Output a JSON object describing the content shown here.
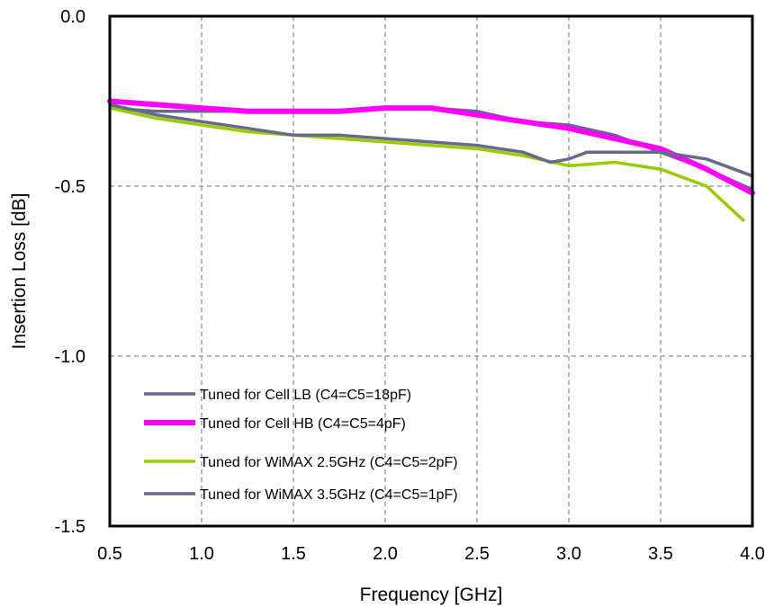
{
  "chart_data": {
    "type": "line",
    "title": "",
    "xlabel": "Frequency [GHz]",
    "ylabel": "Insertion Loss [dB]",
    "xlim": [
      0.5,
      4.0
    ],
    "ylim": [
      -1.5,
      0.0
    ],
    "x_ticks": [
      "0.5",
      "1.0",
      "1.5",
      "2.0",
      "2.5",
      "3.0",
      "3.5",
      "4.0"
    ],
    "y_ticks": [
      "0.0",
      "-0.5",
      "-1.0",
      "-1.5"
    ],
    "grid": true,
    "legend_position": "bottom-left",
    "series": [
      {
        "name": "Tuned for Cell LB (C4=C5=18pF)",
        "color": "#666a8a",
        "x": [
          0.5,
          0.75,
          1.0,
          1.25,
          1.5,
          1.75,
          2.0,
          2.25,
          2.5,
          2.75,
          3.0,
          3.25,
          3.5,
          3.75,
          4.0
        ],
        "y": [
          -0.27,
          -0.28,
          -0.28,
          -0.28,
          -0.28,
          -0.28,
          -0.27,
          -0.27,
          -0.28,
          -0.31,
          -0.32,
          -0.35,
          -0.4,
          -0.45,
          -0.51
        ]
      },
      {
        "name": "Tuned for Cell HB (C4=C5=4pF)",
        "color": "#ff00ff",
        "x": [
          0.5,
          0.75,
          1.0,
          1.25,
          1.5,
          1.75,
          2.0,
          2.25,
          2.5,
          2.75,
          3.0,
          3.25,
          3.5,
          3.75,
          4.0
        ],
        "y": [
          -0.25,
          -0.26,
          -0.27,
          -0.28,
          -0.28,
          -0.28,
          -0.27,
          -0.27,
          -0.29,
          -0.31,
          -0.33,
          -0.36,
          -0.39,
          -0.45,
          -0.52
        ]
      },
      {
        "name": "Tuned for WiMAX 2.5GHz (C4=C5=2pF)",
        "color": "#99cc00",
        "x": [
          0.5,
          0.75,
          1.0,
          1.25,
          1.5,
          1.75,
          2.0,
          2.25,
          2.5,
          2.75,
          3.0,
          3.25,
          3.5,
          3.75,
          3.95
        ],
        "y": [
          -0.27,
          -0.3,
          -0.32,
          -0.34,
          -0.35,
          -0.36,
          -0.37,
          -0.38,
          -0.39,
          -0.41,
          -0.44,
          -0.43,
          -0.45,
          -0.5,
          -0.6
        ]
      },
      {
        "name": "Tuned for WiMAX 3.5GHz (C4=C5=1pF)",
        "color": "#666a8a",
        "x": [
          0.5,
          0.75,
          1.0,
          1.25,
          1.5,
          1.75,
          2.0,
          2.25,
          2.5,
          2.75,
          2.9,
          3.0,
          3.1,
          3.25,
          3.5,
          3.75,
          4.0
        ],
        "y": [
          -0.26,
          -0.29,
          -0.31,
          -0.33,
          -0.35,
          -0.35,
          -0.36,
          -0.37,
          -0.38,
          -0.4,
          -0.43,
          -0.42,
          -0.4,
          -0.4,
          -0.4,
          -0.42,
          -0.47
        ]
      }
    ]
  }
}
